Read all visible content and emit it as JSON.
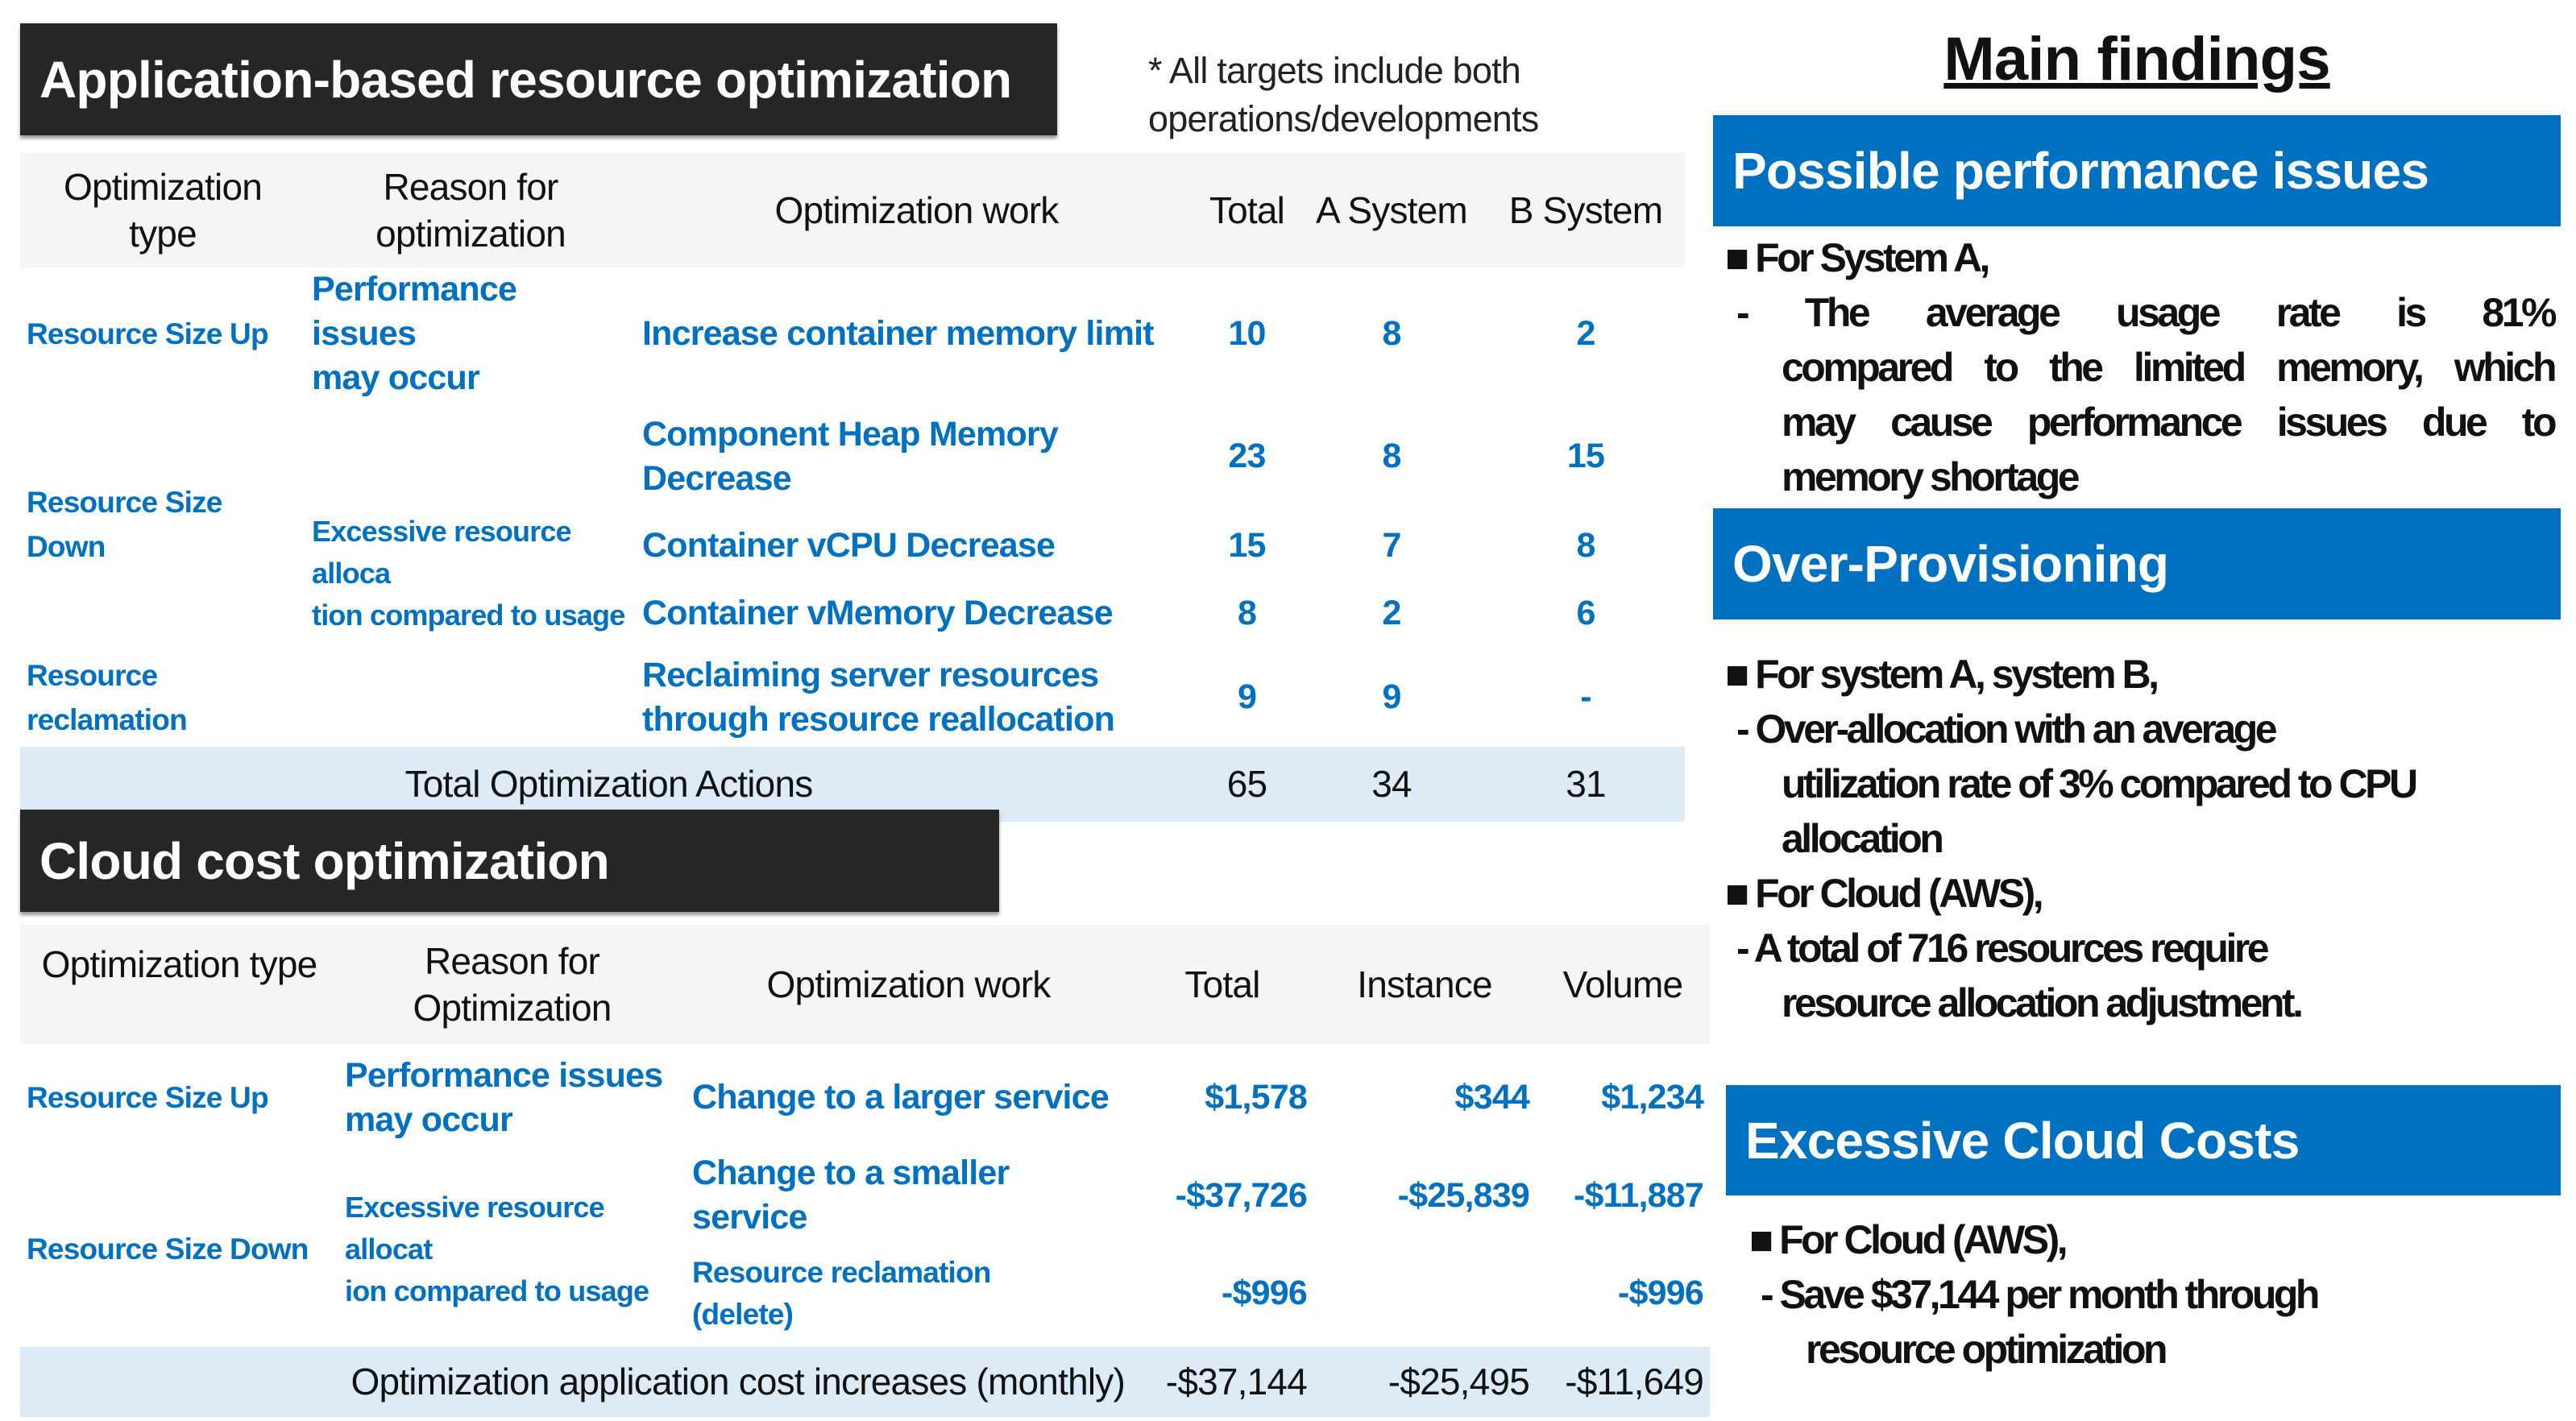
{
  "app_section": {
    "title": "Application-based resource optimization",
    "note_lines": [
      "* All targets include both",
      "operations/developments"
    ],
    "headers": {
      "type": [
        "Optimization",
        "type"
      ],
      "reason": [
        "Reason for",
        "optimization"
      ],
      "work": "Optimization work",
      "total": "Total",
      "a": "A System",
      "b": "B System"
    },
    "types": {
      "up": "Resource Size Up",
      "down": "Resource Size Down",
      "reclaim": "Resource reclamation"
    },
    "reasons": {
      "perf": [
        "Performance issues",
        "may occur"
      ],
      "excess": [
        "Excessive resource alloca",
        "tion compared to usage"
      ]
    },
    "rows": [
      {
        "work": [
          "Increase container memory limit"
        ],
        "total": "10",
        "a": "8",
        "b": "2"
      },
      {
        "work": [
          "Component Heap Memory",
          "Decrease"
        ],
        "total": "23",
        "a": "8",
        "b": "15"
      },
      {
        "work": [
          "Container vCPU Decrease"
        ],
        "total": "15",
        "a": "7",
        "b": "8"
      },
      {
        "work": [
          "Container vMemory Decrease"
        ],
        "total": "8",
        "a": "2",
        "b": "6"
      },
      {
        "work": [
          "Reclaiming server resources",
          "through resource reallocation"
        ],
        "total": "9",
        "a": "9",
        "b": "-"
      }
    ],
    "total_row": {
      "label": "Total Optimization Actions",
      "total": "65",
      "a": "34",
      "b": "31"
    }
  },
  "cloud_section": {
    "title": "Cloud cost optimization",
    "headers": {
      "type": "Optimization type",
      "reason": [
        "Reason for",
        "Optimization"
      ],
      "work": "Optimization work",
      "total": "Total",
      "instance": "Instance",
      "volume": "Volume"
    },
    "types": {
      "up": "Resource Size Up",
      "down": "Resource Size Down"
    },
    "reasons": {
      "perf": [
        "Performance issues",
        "may occur"
      ],
      "excess": [
        "Excessive resource allocat",
        "ion compared to usage"
      ]
    },
    "rows": [
      {
        "work": [
          "Change to a larger service"
        ],
        "total": "$1,578",
        "instance": "$344",
        "volume": "$1,234"
      },
      {
        "work": [
          "Change to a smaller service"
        ],
        "total": "-$37,726",
        "instance": "-$25,839",
        "volume": "-$11,887"
      },
      {
        "work": [
          "Resource reclamation",
          "(delete)"
        ],
        "total": "-$996",
        "instance": "",
        "volume": "-$996"
      }
    ],
    "total_row": {
      "label": "Optimization application cost increases (monthly)",
      "total": "-$37,144",
      "instance": "-$25,495",
      "volume": "-$11,649"
    }
  },
  "findings": {
    "title": "Main findings",
    "sections": [
      {
        "heading": "Possible performance issues",
        "lines": [
          "■ For System A,",
          "- The average usage rate is 81%",
          "compared to the limited memory, which",
          "may cause performance issues due to",
          "memory shortage"
        ]
      },
      {
        "heading": "Over-Provisioning",
        "lines": [
          "■ For system A, system B,",
          "- Over-allocation with an average",
          "utilization rate of 3% compared to CPU",
          "allocation",
          "■ For Cloud (AWS),",
          "- A total of 716 resources require",
          "resource allocation adjustment."
        ]
      },
      {
        "heading": "Excessive Cloud Costs",
        "lines": [
          "■ For Cloud (AWS),",
          "- Save $37,144 per month through",
          "resource optimization"
        ]
      }
    ]
  },
  "colors": {
    "accent_blue": "#0070C0",
    "dark_bar": "#262626",
    "total_row_bg": "#ddebf7",
    "header_bg": "#f4f5f4"
  }
}
